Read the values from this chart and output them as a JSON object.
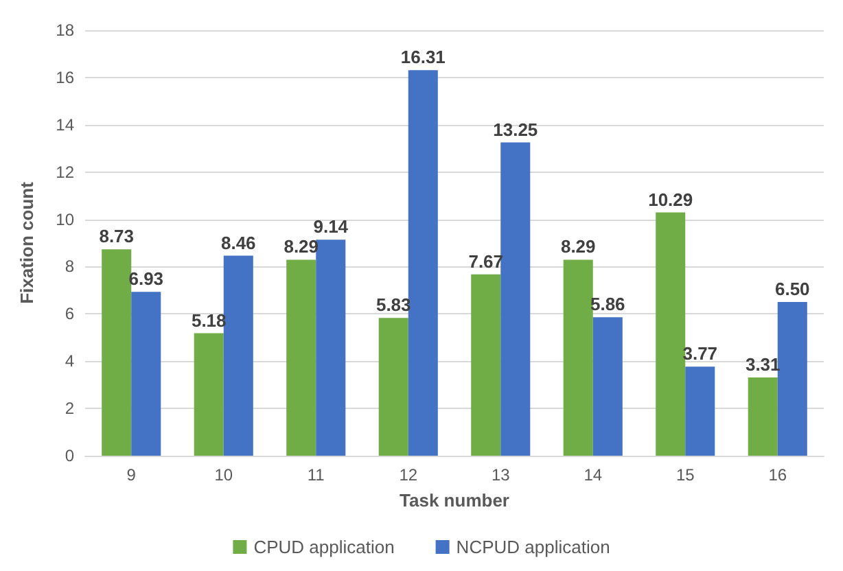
{
  "chart_data": {
    "type": "bar",
    "xlabel": "Task number",
    "ylabel": "Fixation count",
    "categories": [
      "9",
      "10",
      "11",
      "12",
      "13",
      "14",
      "15",
      "16"
    ],
    "series": [
      {
        "name": "CPUD application",
        "color": "#70ad47",
        "values": [
          8.73,
          5.18,
          8.29,
          5.83,
          7.67,
          8.29,
          10.29,
          3.31
        ],
        "value_labels": [
          "8.73",
          "5.18",
          "8.29",
          "5.83",
          "7.67",
          "8.29",
          "10.29",
          "3.31"
        ]
      },
      {
        "name": "NCPUD application",
        "color": "#4472c4",
        "values": [
          6.93,
          8.46,
          9.14,
          16.31,
          13.25,
          5.86,
          3.77,
          6.5
        ],
        "value_labels": [
          "6.93",
          "8.46",
          "9.14",
          "16.31",
          "13.25",
          "5.86",
          "3.77",
          "6.50"
        ]
      }
    ],
    "ylim": [
      0,
      18
    ],
    "yticks": [
      0,
      2,
      4,
      6,
      8,
      10,
      12,
      14,
      16,
      18
    ],
    "grid": "y",
    "legend": "bottom"
  }
}
